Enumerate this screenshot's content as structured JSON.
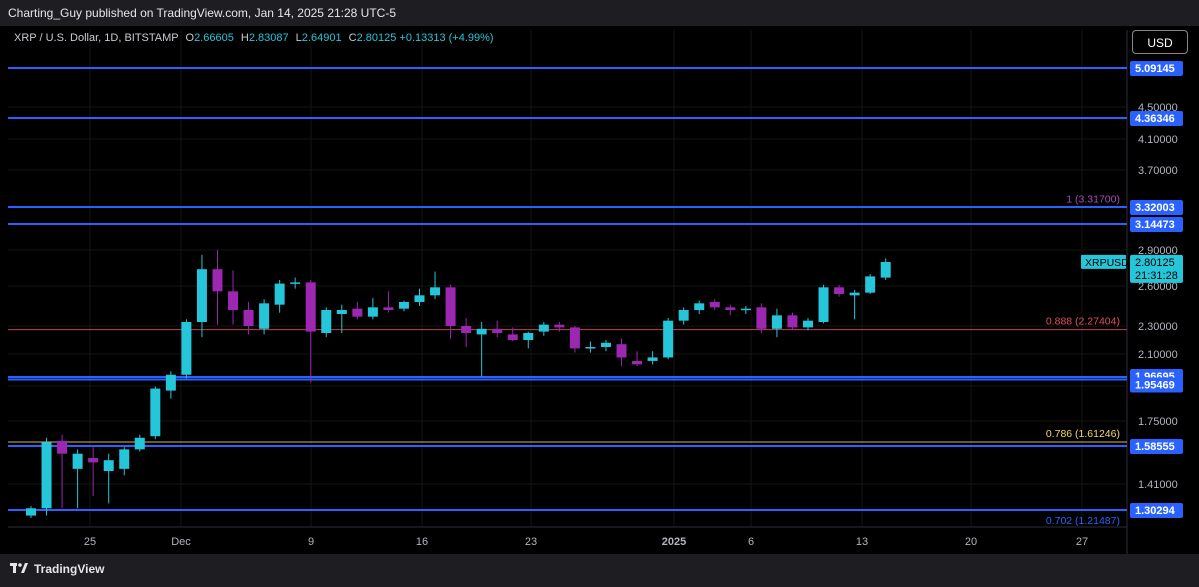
{
  "header": {
    "publisher_line": "Charting_Guy published on TradingView.com, Jan 14, 2025 21:28 UTC-5"
  },
  "legend": {
    "symbol": "XRP / U.S. Dollar, 1D, BITSTAMP",
    "open_label": "O",
    "open": "2.66605",
    "high_label": "H",
    "high": "2.83087",
    "low_label": "L",
    "low": "2.64901",
    "close_label": "C",
    "close": "2.80125",
    "change": "+0.13313 (+4.99%)"
  },
  "currency_button": "USD",
  "footer": {
    "logo_text": "TradingView"
  },
  "colors": {
    "up": "#26c6da",
    "down": "#9c27b0",
    "level_line": "#2962ff",
    "fib_red": "#e04f5f",
    "fib_gold": "#f5d76e",
    "fib_purple": "#ab47bc"
  },
  "chart_data": {
    "type": "candlestick",
    "ylim": [
      1.27,
      5.2
    ],
    "y_ticks": [
      "4.50000",
      "4.10000",
      "3.70000",
      "2.90000",
      "2.60000",
      "2.30000",
      "2.10000",
      "1.75000",
      "1.41000"
    ],
    "x_ticks": [
      "25",
      "Dec",
      "9",
      "16",
      "23",
      "2025",
      "6",
      "13",
      "20",
      "27"
    ],
    "horizontal_levels": [
      "5.09145",
      "4.36346",
      "3.32003",
      "3.14473",
      "1.96695",
      "1.95469",
      "1.58555",
      "1.30294"
    ],
    "fib_levels": [
      {
        "label": "1 (3.31700)",
        "value": 3.317,
        "color": "#ab47bc"
      },
      {
        "label": "0.888 (2.27404)",
        "value": 2.274,
        "color": "#e04f5f"
      },
      {
        "label": "0.786 (1.61246)",
        "value": 1.612,
        "color": "#f5d76e"
      },
      {
        "label": "0.702 (1.21487)",
        "value": 1.215,
        "color": "#2962ff"
      }
    ],
    "last_price": {
      "symbol": "XRPUSD",
      "price": "2.80125",
      "countdown": "21:31:28",
      "value": 2.80125
    },
    "candles": [
      [
        1.28,
        1.32,
        1.27,
        1.31
      ],
      [
        1.31,
        1.64,
        1.28,
        1.61
      ],
      [
        1.62,
        1.66,
        1.31,
        1.55
      ],
      [
        1.48,
        1.57,
        1.31,
        1.55
      ],
      [
        1.53,
        1.59,
        1.36,
        1.51
      ],
      [
        1.47,
        1.55,
        1.33,
        1.52
      ],
      [
        1.48,
        1.58,
        1.45,
        1.57
      ],
      [
        1.57,
        1.66,
        1.56,
        1.64
      ],
      [
        1.65,
        1.92,
        1.63,
        1.91
      ],
      [
        1.9,
        2.0,
        1.86,
        1.98
      ],
      [
        1.98,
        2.35,
        1.96,
        2.33
      ],
      [
        2.33,
        2.86,
        2.22,
        2.74
      ],
      [
        2.74,
        2.9,
        2.31,
        2.56
      ],
      [
        2.56,
        2.73,
        2.31,
        2.42
      ],
      [
        2.42,
        2.48,
        2.24,
        2.3
      ],
      [
        2.28,
        2.5,
        2.24,
        2.47
      ],
      [
        2.46,
        2.65,
        2.4,
        2.62
      ],
      [
        2.62,
        2.67,
        2.58,
        2.63
      ],
      [
        2.63,
        2.65,
        1.94,
        2.26
      ],
      [
        2.25,
        2.44,
        2.22,
        2.42
      ],
      [
        2.39,
        2.46,
        2.25,
        2.42
      ],
      [
        2.43,
        2.48,
        2.35,
        2.37
      ],
      [
        2.37,
        2.51,
        2.35,
        2.44
      ],
      [
        2.44,
        2.56,
        2.4,
        2.42
      ],
      [
        2.43,
        2.49,
        2.41,
        2.48
      ],
      [
        2.48,
        2.58,
        2.45,
        2.53
      ],
      [
        2.53,
        2.72,
        2.5,
        2.59
      ],
      [
        2.59,
        2.61,
        2.21,
        2.3
      ],
      [
        2.3,
        2.36,
        2.15,
        2.25
      ],
      [
        2.24,
        2.33,
        1.97,
        2.28
      ],
      [
        2.28,
        2.34,
        2.22,
        2.25
      ],
      [
        2.24,
        2.29,
        2.19,
        2.2
      ],
      [
        2.2,
        2.26,
        2.14,
        2.25
      ],
      [
        2.26,
        2.33,
        2.23,
        2.31
      ],
      [
        2.31,
        2.33,
        2.26,
        2.29
      ],
      [
        2.29,
        2.3,
        2.11,
        2.14
      ],
      [
        2.14,
        2.19,
        2.11,
        2.15
      ],
      [
        2.15,
        2.2,
        2.12,
        2.18
      ],
      [
        2.17,
        2.21,
        2.03,
        2.08
      ],
      [
        2.06,
        2.12,
        2.03,
        2.04
      ],
      [
        2.06,
        2.12,
        2.04,
        2.08
      ],
      [
        2.08,
        2.36,
        2.07,
        2.34
      ],
      [
        2.34,
        2.44,
        2.31,
        2.42
      ],
      [
        2.42,
        2.49,
        2.39,
        2.47
      ],
      [
        2.48,
        2.5,
        2.42,
        2.44
      ],
      [
        2.44,
        2.46,
        2.38,
        2.42
      ],
      [
        2.42,
        2.45,
        2.39,
        2.43
      ],
      [
        2.44,
        2.47,
        2.25,
        2.28
      ],
      [
        2.28,
        2.43,
        2.22,
        2.38
      ],
      [
        2.38,
        2.4,
        2.27,
        2.29
      ],
      [
        2.29,
        2.36,
        2.27,
        2.34
      ],
      [
        2.33,
        2.61,
        2.32,
        2.59
      ],
      [
        2.59,
        2.61,
        2.52,
        2.54
      ],
      [
        2.53,
        2.57,
        2.35,
        2.55
      ],
      [
        2.55,
        2.7,
        2.54,
        2.68
      ],
      [
        2.67,
        2.83,
        2.65,
        2.8
      ]
    ]
  }
}
